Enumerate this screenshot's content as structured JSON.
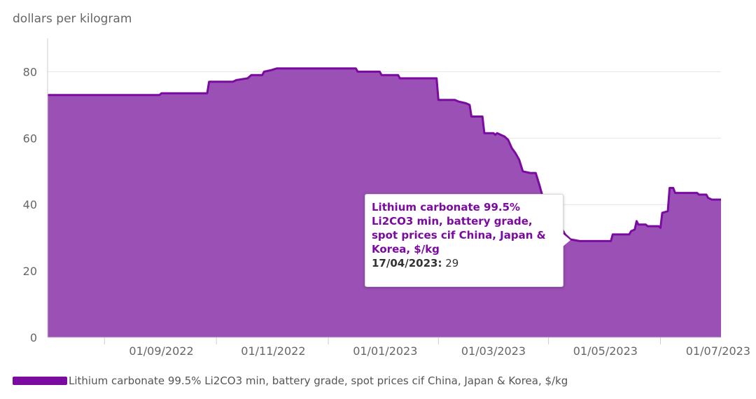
{
  "chart_data": {
    "type": "area",
    "ylabel": "dollars per kilogram",
    "ylim": [
      0,
      90
    ],
    "yticks": [
      0,
      20,
      40,
      60,
      80
    ],
    "xlim": [
      "2022-07-01",
      "2023-07-03"
    ],
    "xticks": [
      "2022-09-01",
      "2022-11-01",
      "2023-01-01",
      "2023-03-01",
      "2023-05-01",
      "2023-07-01"
    ],
    "xtick_labels": [
      "01/09/2022",
      "01/11/2022",
      "01/01/2023",
      "01/03/2023",
      "01/05/2023",
      "01/07/2023"
    ],
    "grid": true,
    "legend_position": "bottom-left",
    "colors": {
      "fill": "#9a50b5",
      "line": "#7a0aa0"
    },
    "series": [
      {
        "name": "Lithium carbonate 99.5% Li2CO3 min, battery grade, spot prices cif China, Japan & Korea, $/kg",
        "points": [
          [
            "2022-07-01",
            73
          ],
          [
            "2022-08-31",
            73
          ],
          [
            "2022-09-01",
            73.5
          ],
          [
            "2022-09-26",
            73.5
          ],
          [
            "2022-09-27",
            77
          ],
          [
            "2022-10-10",
            77
          ],
          [
            "2022-10-12",
            77.5
          ],
          [
            "2022-10-18",
            78
          ],
          [
            "2022-10-20",
            79
          ],
          [
            "2022-10-26",
            79
          ],
          [
            "2022-10-27",
            80
          ],
          [
            "2022-10-31",
            80.5
          ],
          [
            "2022-11-03",
            81
          ],
          [
            "2022-12-16",
            81
          ],
          [
            "2022-12-17",
            80
          ],
          [
            "2022-12-29",
            80
          ],
          [
            "2022-12-30",
            79
          ],
          [
            "2023-01-08",
            79
          ],
          [
            "2023-01-09",
            78
          ],
          [
            "2023-01-29",
            78
          ],
          [
            "2023-01-30",
            71.5
          ],
          [
            "2023-02-08",
            71.5
          ],
          [
            "2023-02-10",
            71
          ],
          [
            "2023-02-14",
            70.5
          ],
          [
            "2023-02-16",
            70
          ],
          [
            "2023-02-17",
            66.5
          ],
          [
            "2023-02-23",
            66.5
          ],
          [
            "2023-02-24",
            61.5
          ],
          [
            "2023-03-01",
            61.5
          ],
          [
            "2023-03-02",
            61
          ],
          [
            "2023-03-03",
            61.5
          ],
          [
            "2023-03-05",
            61
          ],
          [
            "2023-03-07",
            60.5
          ],
          [
            "2023-03-09",
            59.5
          ],
          [
            "2023-03-11",
            57
          ],
          [
            "2023-03-13",
            55.5
          ],
          [
            "2023-03-15",
            53.5
          ],
          [
            "2023-03-17",
            50
          ],
          [
            "2023-03-21",
            49.5
          ],
          [
            "2023-03-24",
            49.5
          ],
          [
            "2023-03-26",
            46
          ],
          [
            "2023-03-28",
            42
          ],
          [
            "2023-03-31",
            40
          ],
          [
            "2023-04-02",
            38
          ],
          [
            "2023-04-04",
            38
          ],
          [
            "2023-04-06",
            34
          ],
          [
            "2023-04-09",
            31
          ],
          [
            "2023-04-12",
            29.5
          ],
          [
            "2023-04-17",
            29
          ],
          [
            "2023-05-04",
            29
          ],
          [
            "2023-05-05",
            31
          ],
          [
            "2023-05-14",
            31
          ],
          [
            "2023-05-15",
            32
          ],
          [
            "2023-05-17",
            32.5
          ],
          [
            "2023-05-18",
            35
          ],
          [
            "2023-05-19",
            34
          ],
          [
            "2023-05-23",
            34
          ],
          [
            "2023-05-24",
            33.5
          ],
          [
            "2023-05-30",
            33.5
          ],
          [
            "2023-05-31",
            33
          ],
          [
            "2023-06-01",
            37.5
          ],
          [
            "2023-06-04",
            38
          ],
          [
            "2023-06-05",
            45
          ],
          [
            "2023-06-07",
            45
          ],
          [
            "2023-06-08",
            43.5
          ],
          [
            "2023-06-20",
            43.5
          ],
          [
            "2023-06-21",
            43
          ],
          [
            "2023-06-25",
            43
          ],
          [
            "2023-06-26",
            42
          ],
          [
            "2023-06-28",
            41.5
          ],
          [
            "2023-07-03",
            41.5
          ]
        ]
      }
    ],
    "tooltip": {
      "title": "Lithium carbonate 99.5% Li2CO3 min, battery grade, spot prices cif China, Japan & Korea, $/kg",
      "date": "17/04/2023:",
      "value": "29"
    }
  },
  "legend": {
    "label": "Lithium carbonate 99.5% Li2CO3 min, battery grade, spot prices cif China, Japan & Korea, $/kg"
  }
}
